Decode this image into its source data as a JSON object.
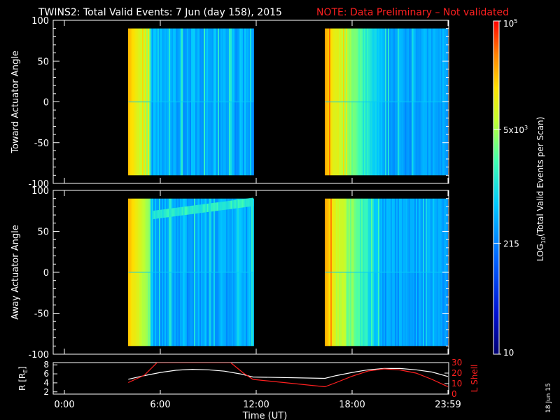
{
  "header": {
    "title": "TWINS2: Total Valid Events:  7 Jun (day 158), 2015",
    "note": "NOTE: Data Preliminary – Not validated"
  },
  "side_stamp": "18 Jun 15",
  "colors": {
    "note": "#ff2020",
    "lshell": "#ff2020",
    "radius": "#ffffff",
    "frame": "#ffffff"
  },
  "chart_data": [
    {
      "type": "heatmap",
      "ylabel": "Toward Actuator Angle",
      "ylim": [
        -100,
        100
      ],
      "yticks": [
        "100",
        "50",
        "0",
        "-50",
        "-100"
      ],
      "data_y_range": [
        -90,
        90
      ],
      "x_range_hours": [
        0,
        24
      ],
      "segments_hours": [
        [
          4.0,
          11.8
        ],
        [
          16.3,
          24.0
        ]
      ],
      "shared_x_axis": true
    },
    {
      "type": "heatmap",
      "ylabel": "Away Actuator Angle",
      "ylim": [
        -100,
        100
      ],
      "yticks": [
        "100",
        "50",
        "0",
        "-50",
        "-100"
      ],
      "data_y_range": [
        -90,
        90
      ],
      "x_range_hours": [
        0,
        24
      ],
      "segments_hours": [
        [
          4.0,
          11.8
        ],
        [
          16.3,
          24.0
        ]
      ],
      "feature": "enhanced band near +75 deg from about 5.5 to 11.8 UT",
      "shared_x_axis": true
    },
    {
      "type": "line",
      "xlabel": "Time (UT)",
      "xticks": [
        "0:00",
        "6:00",
        "12:00",
        "18:00",
        "23:59"
      ],
      "xtick_hours": [
        0,
        6,
        12,
        18,
        24
      ],
      "ylabel_left": "R [R",
      "ylabel_left_sub": "E",
      "ylabel_left_end": "]",
      "ylim_left": [
        1.5,
        8.5
      ],
      "yticks_left": [
        "8",
        "6",
        "4",
        "2"
      ],
      "ylabel_right": "L Shell",
      "ylim_right": [
        0,
        30
      ],
      "yticks_right": [
        "30",
        "20",
        "10",
        "0"
      ],
      "series": [
        {
          "axis": "left",
          "x": [
            4.0,
            5.0,
            6.0,
            7.0,
            8.0,
            9.0,
            10.0,
            11.0,
            11.8,
            16.3,
            17.0,
            18.0,
            19.0,
            20.0,
            21.0,
            22.0,
            23.0,
            24.0
          ],
          "y": [
            4.8,
            5.6,
            6.3,
            6.8,
            7.0,
            6.9,
            6.6,
            6.0,
            5.3,
            5.0,
            5.6,
            6.3,
            6.9,
            7.2,
            7.2,
            6.9,
            6.4,
            5.4
          ]
        },
        {
          "axis": "right",
          "x": [
            4.0,
            5.0,
            5.8,
            10.4,
            11.2,
            11.8,
            16.3,
            17.0,
            18.0,
            19.0,
            20.0,
            21.0,
            22.0,
            23.0,
            24.0
          ],
          "y": [
            11,
            18,
            30,
            30,
            20,
            14,
            7,
            11,
            17,
            22,
            24,
            23,
            20,
            14,
            7
          ]
        }
      ]
    }
  ],
  "colorbar": {
    "label": "LOG",
    "label_sub": "10",
    "label_end": "(Total Valid Events per Scan)",
    "scale": "log",
    "range": [
      10,
      100000
    ],
    "ticks": [
      {
        "base": "10",
        "exp": "5",
        "value": 100000
      },
      {
        "base": "5x10",
        "exp": "3",
        "value": 5000
      },
      {
        "base": "215",
        "exp": "",
        "value": 215
      },
      {
        "base": "10",
        "exp": "",
        "value": 10
      }
    ]
  }
}
